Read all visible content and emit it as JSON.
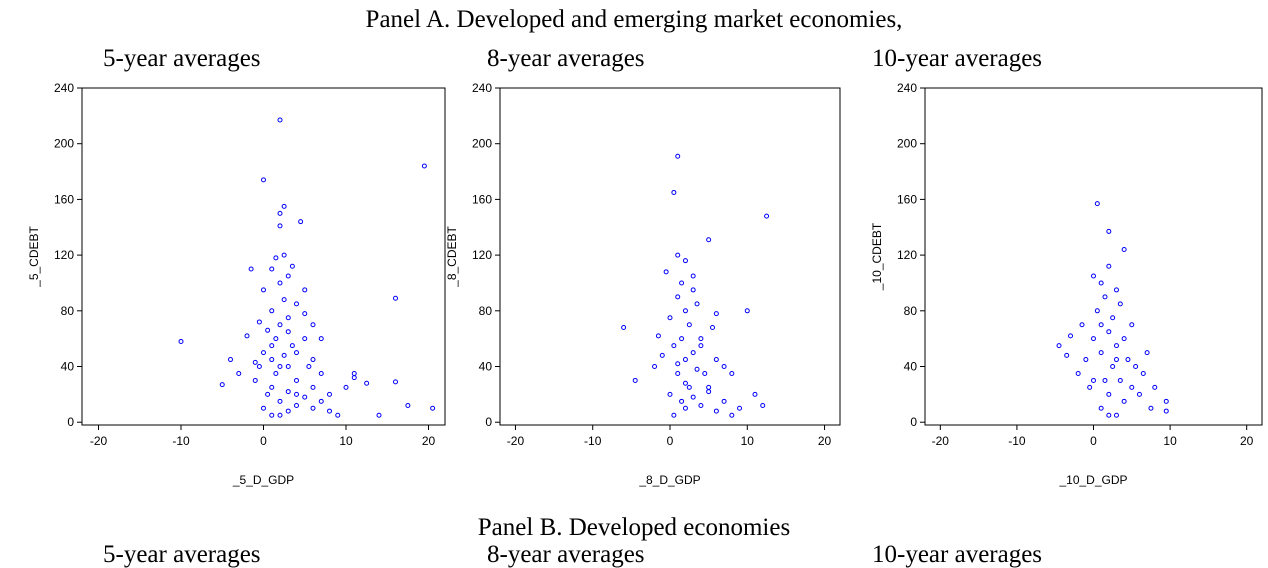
{
  "panel_a_title": "Panel A. Developed and emerging market economies,",
  "chart_data": [
    {
      "type": "scatter",
      "title": "5-year averages",
      "x_label": "_5_D_GDP",
      "y_label": "_5_CDEBT",
      "color": "#0000ff",
      "xlim": [
        -22,
        22
      ],
      "ylim": [
        -2,
        240
      ],
      "xticks": [
        -20,
        -10,
        0,
        10,
        20
      ],
      "yticks": [
        0,
        40,
        80,
        120,
        160,
        200,
        240
      ],
      "x": [
        -10,
        -5,
        -4,
        -3,
        -2,
        -1,
        -1,
        -0.5,
        0,
        0,
        0,
        0.5,
        0.5,
        1,
        1,
        1,
        1,
        1,
        1.5,
        1.5,
        1.5,
        2,
        2,
        2,
        2,
        2,
        2,
        2.5,
        2.5,
        2.5,
        3,
        3,
        3,
        3,
        3,
        3.5,
        3.5,
        4,
        4,
        4,
        4,
        4.5,
        5,
        5,
        5,
        5.5,
        6,
        6,
        6,
        7,
        7,
        8,
        8,
        9,
        10,
        11,
        11,
        12.5,
        14,
        16,
        16,
        17.5,
        19.5,
        20.5,
        0,
        2,
        2,
        2.5,
        5,
        -1.5,
        -0.5,
        1,
        3,
        4,
        6,
        7
      ],
      "y": [
        58,
        27,
        45,
        35,
        62,
        43,
        30,
        72,
        10,
        95,
        50,
        66,
        20,
        110,
        80,
        45,
        25,
        5,
        118,
        60,
        35,
        217,
        150,
        141,
        100,
        70,
        15,
        155,
        88,
        48,
        105,
        65,
        40,
        22,
        8,
        112,
        55,
        85,
        30,
        12,
        50,
        144,
        95,
        60,
        18,
        40,
        70,
        25,
        10,
        35,
        15,
        8,
        20,
        5,
        25,
        35,
        32,
        28,
        5,
        89,
        29,
        12,
        184,
        10,
        174,
        5,
        40,
        120,
        78,
        110,
        40,
        55,
        75,
        20,
        45,
        60
      ]
    },
    {
      "type": "scatter",
      "title": "8-year averages",
      "x_label": "_8_D_GDP",
      "y_label": "_8_CDEBT",
      "color": "#0000ff",
      "xlim": [
        -22,
        22
      ],
      "ylim": [
        -2,
        240
      ],
      "xticks": [
        -20,
        -10,
        0,
        10,
        20
      ],
      "yticks": [
        0,
        40,
        80,
        120,
        160,
        200,
        240
      ],
      "x": [
        -6,
        -4.5,
        -2,
        -1.5,
        -1,
        -0.5,
        0,
        0,
        0.5,
        0.5,
        1,
        1,
        1,
        1,
        1.5,
        1.5,
        1.5,
        2,
        2,
        2,
        2,
        2.5,
        2.5,
        3,
        3,
        3,
        3.5,
        3.5,
        4,
        4,
        4.5,
        5,
        5,
        5.5,
        6,
        6,
        7,
        7,
        8,
        8,
        9,
        10,
        11,
        12,
        12.5,
        0.5,
        1,
        2,
        3,
        4,
        5,
        6
      ],
      "y": [
        68,
        30,
        40,
        62,
        48,
        108,
        75,
        20,
        165,
        55,
        191,
        120,
        90,
        35,
        100,
        60,
        15,
        116,
        80,
        45,
        10,
        70,
        25,
        105,
        50,
        18,
        85,
        38,
        60,
        12,
        35,
        131,
        22,
        68,
        78,
        8,
        40,
        15,
        35,
        5,
        10,
        80,
        20,
        12,
        148,
        5,
        42,
        28,
        95,
        55,
        25,
        45
      ]
    },
    {
      "type": "scatter",
      "title": "10-year averages",
      "x_label": "_10_D_GDP",
      "y_label": "_10_CDEBT",
      "color": "#0000ff",
      "xlim": [
        -22,
        22
      ],
      "ylim": [
        -2,
        240
      ],
      "xticks": [
        -20,
        -10,
        0,
        10,
        20
      ],
      "yticks": [
        0,
        40,
        80,
        120,
        160,
        200,
        240
      ],
      "x": [
        -4.5,
        -3.5,
        -3,
        -2,
        -1.5,
        -1,
        -0.5,
        0,
        0,
        0.5,
        0.5,
        1,
        1,
        1,
        1.5,
        1.5,
        2,
        2,
        2,
        2,
        2.5,
        2.5,
        3,
        3,
        3,
        3.5,
        3.5,
        4,
        4,
        4,
        4.5,
        5,
        5,
        5.5,
        6,
        6.5,
        7,
        7.5,
        8,
        9.5,
        9.5,
        0,
        1,
        2,
        3
      ],
      "y": [
        55,
        48,
        62,
        35,
        70,
        45,
        25,
        105,
        60,
        157,
        80,
        100,
        50,
        10,
        90,
        30,
        137,
        112,
        65,
        20,
        75,
        40,
        95,
        55,
        5,
        85,
        30,
        124,
        60,
        15,
        45,
        70,
        25,
        40,
        20,
        35,
        50,
        10,
        25,
        15,
        8,
        30,
        70,
        5,
        45
      ]
    }
  ],
  "panel_b": {
    "title": "Panel B. Developed economies",
    "subtitles": [
      "5-year averages",
      "8-year averages",
      "10-year averages"
    ]
  }
}
